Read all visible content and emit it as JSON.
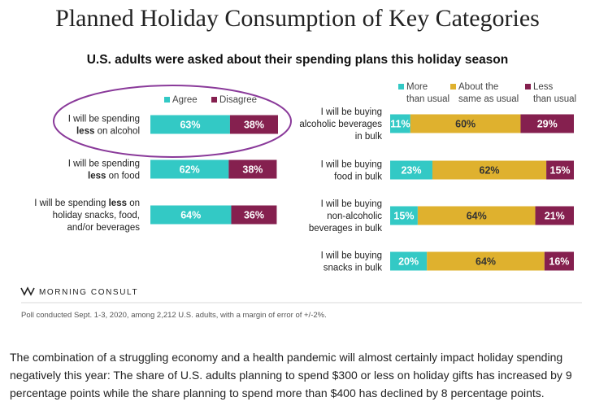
{
  "title": "Planned Holiday Consumption of Key Categories",
  "subtitle": "U.S. adults were asked about their spending plans this holiday season",
  "chart_data": [
    {
      "type": "bar",
      "orientation": "horizontal",
      "stacked": true,
      "categories": [
        [
          "I will be spending",
          "less on alcohol"
        ],
        [
          "I will be spending",
          "less on food"
        ],
        [
          "I will be spending less on",
          "holiday snacks, food,",
          "and/or beverages"
        ]
      ],
      "series": [
        {
          "name": "Agree",
          "color": "#33c9c5",
          "values": [
            63,
            62,
            64
          ],
          "labels": [
            "63%",
            "62%",
            "64%"
          ]
        },
        {
          "name": "Disagree",
          "color": "#85204f",
          "values": [
            38,
            38,
            36
          ],
          "labels": [
            "38%",
            "38%",
            "36%"
          ]
        }
      ],
      "legend": [
        "Agree",
        "Disagree"
      ],
      "legend_position": "top",
      "xlim": [
        0,
        101
      ],
      "annotation": "circle around first row"
    },
    {
      "type": "bar",
      "orientation": "horizontal",
      "stacked": true,
      "categories": [
        [
          "I will be buying",
          "alcoholic beverages",
          "in bulk"
        ],
        [
          "I will be buying",
          "food in bulk"
        ],
        [
          "I will be buying",
          "non-alcoholic",
          "beverages in bulk"
        ],
        [
          "I will be buying",
          "snacks in bulk"
        ]
      ],
      "series": [
        {
          "name": "More than usual",
          "legend_lines": [
            "More",
            "than usual"
          ],
          "color": "#33c9c5",
          "values": [
            11,
            23,
            15,
            20
          ],
          "labels": [
            "11%",
            "23%",
            "15%",
            "20%"
          ]
        },
        {
          "name": "About the same as usual",
          "legend_lines": [
            "About the",
            "same as usual"
          ],
          "color": "#dfb12e",
          "values": [
            60,
            62,
            64,
            64
          ],
          "labels": [
            "60%",
            "62%",
            "64%",
            "64%"
          ]
        },
        {
          "name": "Less than usual",
          "legend_lines": [
            "Less",
            "than usual"
          ],
          "color": "#85204f",
          "values": [
            29,
            15,
            21,
            16
          ],
          "labels": [
            "29%",
            "15%",
            "21%",
            "16%"
          ]
        }
      ],
      "legend_position": "top",
      "xlim": [
        0,
        100
      ]
    }
  ],
  "brand": "MORNING CONSULT",
  "note": "Poll conducted Sept. 1-3, 2020, among 2,212 U.S. adults, with a margin of error of +/-2%.",
  "caption": "The combination of a struggling economy and a health pandemic will almost certainly impact holiday spending negatively this year: The share of U.S. adults planning to spend $300 or less on holiday gifts has increased by 9 percentage points while the share planning to spend more than $400 has declined by 8 percentage points.",
  "colors": {
    "agree": "#33c9c5",
    "disagree": "#85204f",
    "same": "#dfb12e",
    "circle": "#8a3a9a"
  }
}
